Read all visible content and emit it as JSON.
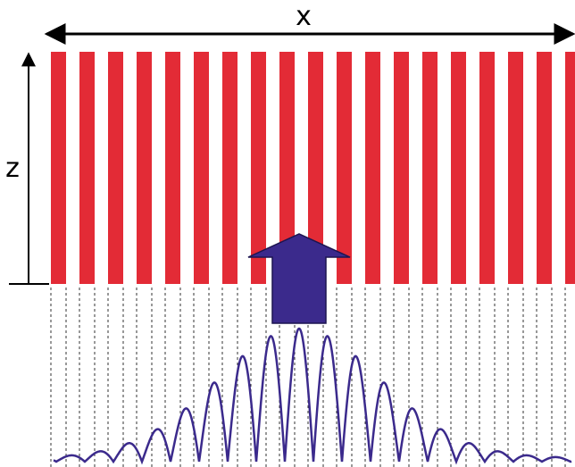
{
  "labels": {
    "x": "x",
    "z": "z"
  }
}
